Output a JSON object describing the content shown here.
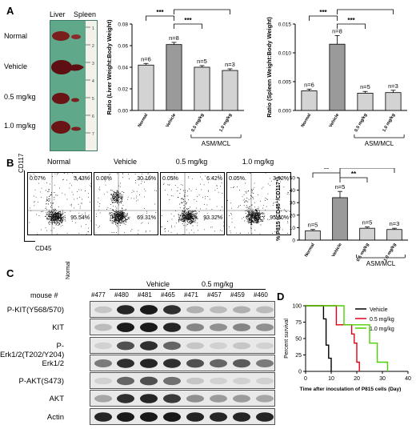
{
  "panel_labels": {
    "a": "A",
    "b": "B",
    "c": "C",
    "d": "D"
  },
  "panel_a": {
    "photo_headers": [
      "Liver",
      "Spleen"
    ],
    "photo_rows": [
      "Normal",
      "Vehicle",
      "0.5 mg/kg",
      "1.0 mg/kg"
    ],
    "ruler_digits": [
      "1",
      "2",
      "3",
      "4",
      "5",
      "6",
      "7"
    ]
  },
  "group_label": "ASM/MCL",
  "significance": {
    "three": "***",
    "two": "**",
    "one": "*"
  },
  "chart_data": [
    {
      "type": "bar",
      "panel": "A-liver",
      "categories": [
        "Normal",
        "Vehicle",
        "0.5 mg/kg",
        "1.0 mg/kg"
      ],
      "values": [
        0.042,
        0.061,
        0.04,
        0.037
      ],
      "errors": [
        0.0015,
        0.002,
        0.0015,
        0.0015
      ],
      "n_labels": [
        "n=6",
        "n=8",
        "n=5",
        "n=3"
      ],
      "ylabel": "Ratio (Liver Weight:Body Weight)",
      "ylim": [
        0,
        0.08
      ],
      "yticks": [
        "0.00",
        "0.02",
        "0.04",
        "0.06",
        "0.08"
      ],
      "colors": [
        "#d3d3d3",
        "#9a9a9a",
        "#d3d3d3",
        "#d3d3d3"
      ]
    },
    {
      "type": "bar",
      "panel": "A-spleen",
      "categories": [
        "Normal",
        "Vehicle",
        "0.5 mg/kg",
        "1.0 mg/kg"
      ],
      "values": [
        0.0034,
        0.0115,
        0.003,
        0.0031
      ],
      "errors": [
        0.0003,
        0.0015,
        0.0003,
        0.0004
      ],
      "n_labels": [
        "n=6",
        "n=8",
        "n=5",
        "n=3"
      ],
      "ylabel": "Ratio (Spleen Weight:Body Weight)",
      "ylim": [
        0,
        0.015
      ],
      "yticks": [
        "0.000",
        "0.005",
        "0.010",
        "0.015"
      ],
      "colors": [
        "#d3d3d3",
        "#9a9a9a",
        "#d3d3d3",
        "#d3d3d3"
      ]
    },
    {
      "type": "bar",
      "panel": "B-p815",
      "categories": [
        "Normal",
        "Vehicle",
        "0.5 mg/kg",
        "1.0 mg/kg"
      ],
      "values": [
        7.5,
        34,
        9.5,
        8.5
      ],
      "errors": [
        1,
        5,
        1,
        1
      ],
      "n_labels": [
        "n=5",
        "n=5",
        "n=5",
        "n=3"
      ],
      "ylabel": "% P815 (CD45⁺/CD117⁺)",
      "ylim": [
        0,
        50
      ],
      "yticks": [
        "0",
        "10",
        "20",
        "30",
        "40",
        "50"
      ],
      "colors": [
        "#d3d3d3",
        "#9a9a9a",
        "#d3d3d3",
        "#d3d3d3"
      ]
    },
    {
      "type": "line",
      "panel": "D-survival",
      "xlabel": "Time after inoculation of P815 cells (Day)",
      "ylabel": "Percent survival",
      "xlim": [
        0,
        40
      ],
      "ylim": [
        0,
        100
      ],
      "xticks": [
        "0",
        "10",
        "20",
        "30",
        "40"
      ],
      "yticks": [
        "0",
        "25",
        "50",
        "75",
        "100"
      ],
      "series": [
        {
          "name": "Vehicle",
          "color": "#000000",
          "x": [
            0,
            7,
            7,
            8,
            8,
            9,
            9,
            10,
            10
          ],
          "y": [
            100,
            100,
            80,
            80,
            40,
            40,
            20,
            20,
            0
          ]
        },
        {
          "name": "0.5 mg/kg",
          "color": "#e0001a",
          "x": [
            0,
            12,
            12,
            18,
            18,
            19,
            19,
            20,
            20,
            21,
            21
          ],
          "y": [
            100,
            100,
            71,
            71,
            57,
            57,
            43,
            43,
            14,
            14,
            0
          ]
        },
        {
          "name": "1.0 mg/kg",
          "color": "#49d100",
          "x": [
            0,
            15,
            15,
            25,
            25,
            28,
            28,
            32,
            32
          ],
          "y": [
            100,
            100,
            71,
            71,
            43,
            43,
            14,
            14,
            0
          ]
        }
      ]
    }
  ],
  "panel_b": {
    "columns": [
      "Normal",
      "Vehicle",
      "0.5 mg/kg",
      "1.0 mg/kg"
    ],
    "quadrants": [
      {
        "ul": "0.07%",
        "ur": "3.43%",
        "lr": "95.54%"
      },
      {
        "ul": "0.08%",
        "ur": "30.16%",
        "lr": "69.31%"
      },
      {
        "ul": "0.05%",
        "ur": "6.42%",
        "lr": "93.32%"
      },
      {
        "ul": "0.05%",
        "ur": "3.92%",
        "lr": "95.30%"
      }
    ],
    "y_axis": "CD117",
    "x_axis": "CD45"
  },
  "panel_c": {
    "mouse_label": "mouse #",
    "normal": "Normal",
    "vehicle": "Vehicle",
    "dose": "0.5 mg/kg",
    "mice": [
      "#477",
      "#480",
      "#481",
      "#465",
      "#471",
      "#457",
      "#459",
      "#460"
    ],
    "blots": [
      "P-KIT(Y568/570)",
      "KIT",
      "P-Erk1/2(T202/Y204)",
      "Erk1/2",
      "P-AKT(S473)",
      "AKT",
      "Actin"
    ]
  }
}
